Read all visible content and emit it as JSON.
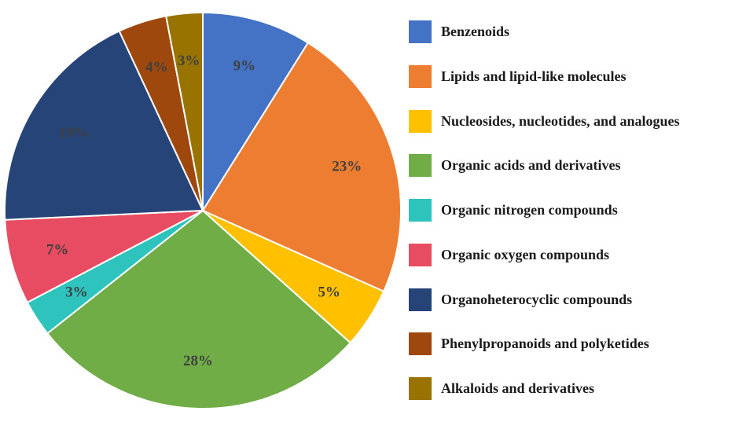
{
  "chart_data": {
    "type": "pie",
    "title": "",
    "legend_position": "right",
    "start_angle_deg": 0,
    "direction": "clockwise",
    "slices": [
      {
        "name": "Benzenoids",
        "value": 9,
        "label": "9%",
        "color": "#4472C4"
      },
      {
        "name": "Lipids and lipid-like molecules",
        "value": 23,
        "label": "23%",
        "color": "#ED7D31"
      },
      {
        "name": "Nucleosides, nucleotides, and analogues",
        "value": 5,
        "label": "5%",
        "color": "#FFC000"
      },
      {
        "name": "Organic acids and derivatives",
        "value": 28,
        "label": "28%",
        "color": "#70AD47"
      },
      {
        "name": "Organic nitrogen compounds",
        "value": 3,
        "label": "3%",
        "color": "#2EC3BD"
      },
      {
        "name": "Organic oxygen compounds",
        "value": 7,
        "label": "7%",
        "color": "#E84C63"
      },
      {
        "name": "Organoheterocyclic compounds",
        "value": 19,
        "label": "19%",
        "color": "#264478"
      },
      {
        "name": "Phenylpropanoids and polyketides",
        "value": 4,
        "label": "4%",
        "color": "#9E480E"
      },
      {
        "name": "Alkaloids and derivatives",
        "value": 3,
        "label": "3%",
        "color": "#997300"
      }
    ]
  }
}
